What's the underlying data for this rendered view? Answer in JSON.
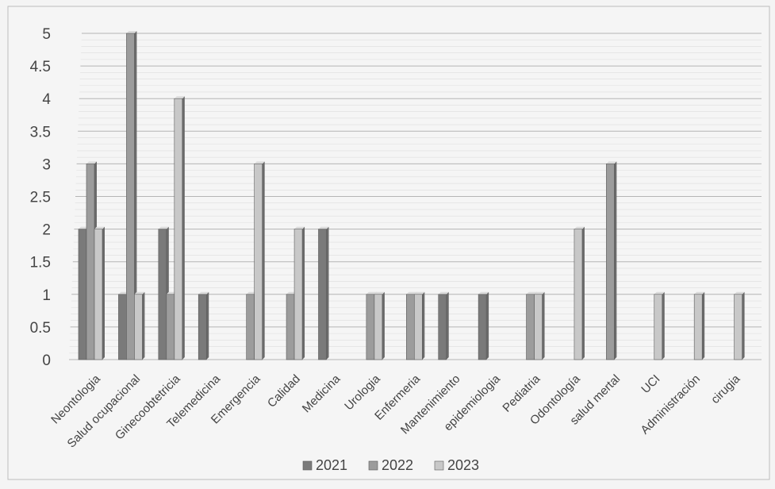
{
  "chart_data": {
    "type": "bar",
    "categories": [
      "Neontologia",
      "Salud ocupacional",
      "Ginecoobtetricia",
      "Telemedicina",
      "Emergencia",
      "Calidad",
      "Medicina",
      "Urologia",
      "Enfermeria",
      "Mantenimiento",
      "epidemiologia",
      "Pediatria",
      "Odontología",
      "salud mertal",
      "UCI",
      "Administración",
      "cirugia"
    ],
    "series": [
      {
        "name": "2021",
        "color": "#7a7a7a",
        "values": [
          2,
          1,
          2,
          1,
          0,
          0,
          2,
          0,
          0,
          1,
          1,
          0,
          0,
          0,
          0,
          0,
          0
        ]
      },
      {
        "name": "2022",
        "color": "#9c9c9c",
        "values": [
          3,
          5,
          1,
          0,
          1,
          1,
          0,
          1,
          1,
          0,
          0,
          1,
          0,
          3,
          0,
          0,
          0
        ]
      },
      {
        "name": "2023",
        "color": "#c8c8c8",
        "values": [
          2,
          1,
          4,
          0,
          3,
          2,
          0,
          1,
          1,
          0,
          0,
          1,
          2,
          0,
          1,
          1,
          1
        ]
      }
    ],
    "ylim": [
      0,
      5
    ],
    "yticks": [
      "0",
      "0.5",
      "1",
      "1.5",
      "2",
      "2.5",
      "3",
      "3.5",
      "4",
      "4.5",
      "5"
    ],
    "ytick_values": [
      0,
      0.5,
      1,
      1.5,
      2,
      2.5,
      3,
      3.5,
      4,
      4.5,
      5
    ],
    "grid": true,
    "legend_position": "bottom"
  }
}
